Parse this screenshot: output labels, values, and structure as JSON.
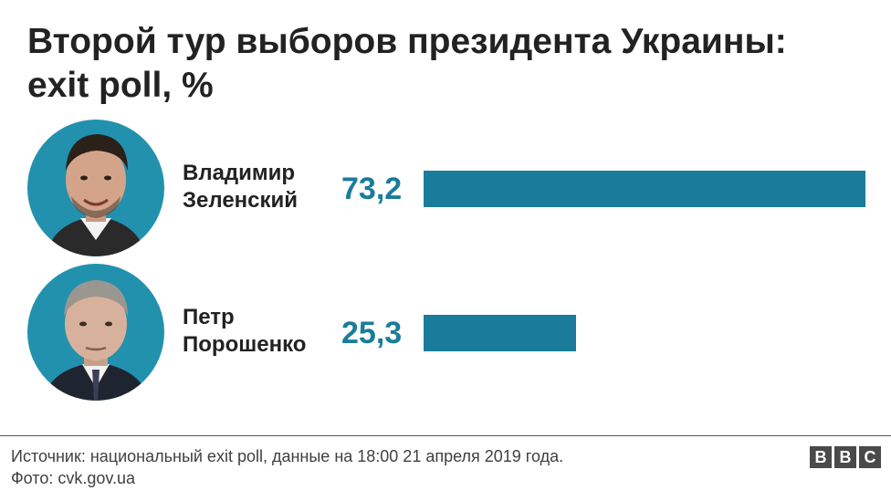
{
  "title_line1": "Второй тур выборов президента Украины:",
  "title_line2": "exit poll, %",
  "chart_data": {
    "type": "bar",
    "categories": [
      "Владимир Зеленский",
      "Петр Порошенко"
    ],
    "values": [
      73.2,
      25.3
    ],
    "value_labels": [
      "73,2",
      "25,3"
    ],
    "title": "Второй тур выборов президента Украины: exit poll, %",
    "xlabel": "",
    "ylabel": "",
    "xlim": [
      0,
      73.2
    ],
    "grid": false,
    "bar_color": "#1a7c9a"
  },
  "candidates": [
    {
      "name_line1": "Владимир",
      "name_line2": "Зеленский",
      "value_label": "73,2",
      "photo_icon": "zelensky-portrait-icon"
    },
    {
      "name_line1": "Петр",
      "name_line2": "Порошенко",
      "value_label": "25,3",
      "photo_icon": "poroshenko-portrait-icon"
    }
  ],
  "footer": {
    "source": "Источник: национальный exit poll, данные на 18:00 21 апреля 2019 года.",
    "photo": "Фото: cvk.gov.ua",
    "logo": [
      "B",
      "B",
      "C"
    ]
  },
  "colors": {
    "accent": "#1a7c9a",
    "avatar_bg": "#2291ae",
    "text": "#222222",
    "logo_bg": "#4a4a4a"
  }
}
